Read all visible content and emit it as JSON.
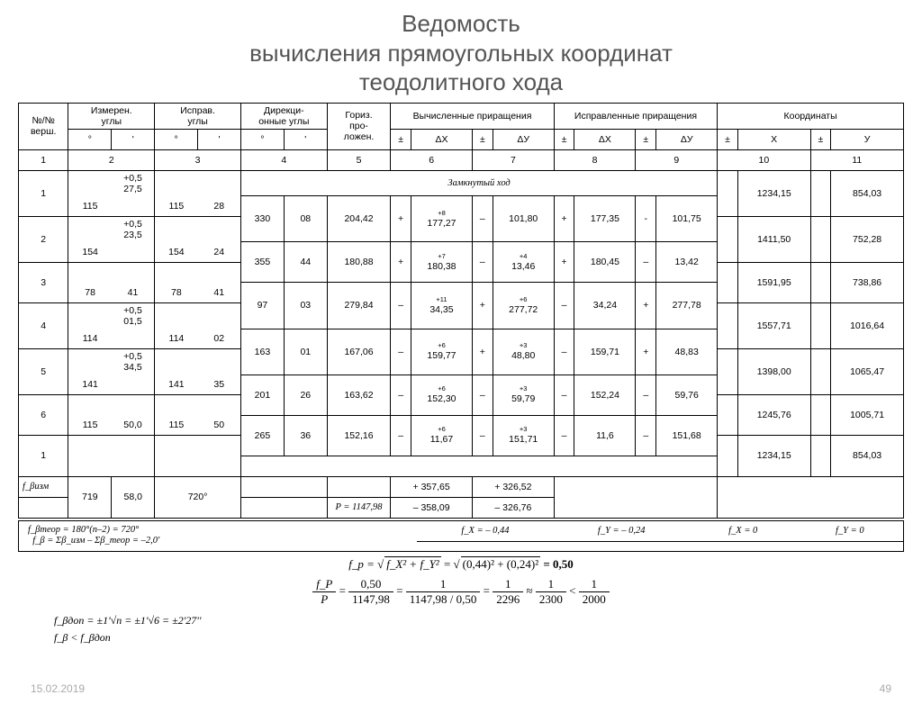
{
  "title_line1": "Ведомость",
  "title_line2": "вычисления прямоугольных координат",
  "title_line3": "теодолитного хода",
  "headers": {
    "c1": "№/№\nверш.",
    "c2": "Измерен.\nуглы",
    "c3": "Исправ.\nуглы",
    "c4": "Дирекци-\nонные углы",
    "c5": "Гориз.\nпро-\nложен.",
    "c6": "Вычисленные\nприращения",
    "c7": "Исправленные\nприращения",
    "c8": "Координаты",
    "pm": "±",
    "dx": "ΔX",
    "dy": "ΔУ",
    "x": "X",
    "y": "У",
    "deg": "°",
    "min": "'"
  },
  "colnums": [
    "1",
    "2",
    "3",
    "4",
    "5",
    "6",
    "7",
    "8",
    "9",
    "10",
    "11"
  ],
  "section_label": "Замкнутый ход",
  "vertices": [
    {
      "n": "1",
      "mc": "+0,5\n27,5",
      "md": "115",
      "id": "115",
      "im": "28",
      "X": "1234,15",
      "Y": "854,03"
    },
    {
      "n": "2",
      "mc": "+0,5\n23,5",
      "md": "154",
      "id": "154",
      "im": "24",
      "X": "1411,50",
      "Y": "752,28"
    },
    {
      "n": "3",
      "mc": "",
      "md": "78",
      "mm": "41",
      "id": "78",
      "im": "41",
      "X": "1591,95",
      "Y": "738,86"
    },
    {
      "n": "4",
      "mc": "+0,5\n01,5",
      "md": "114",
      "id": "114",
      "im": "02",
      "X": "1557,71",
      "Y": "1016,64"
    },
    {
      "n": "5",
      "mc": "+0,5\n34,5",
      "md": "141",
      "id": "141",
      "im": "35",
      "X": "1398,00",
      "Y": "1065,47"
    },
    {
      "n": "6",
      "mc": "",
      "md": "115",
      "mm": "50,0",
      "id": "115",
      "im": "50",
      "X": "1245,76",
      "Y": "1005,71"
    },
    {
      "n": "1",
      "mc": "",
      "md": "",
      "mm": "",
      "id": "",
      "im": "",
      "X": "1234,15",
      "Y": "854,03"
    }
  ],
  "sides": [
    {
      "dd": "330",
      "dm": "08",
      "p": "204,42",
      "sx1": "+",
      "xsup": "+8",
      "x": "177,27",
      "sy1": "–",
      "ysup": "",
      "y": "101,80",
      "sx2": "+",
      "xc": "177,35",
      "sy2": "-",
      "yc": "101,75"
    },
    {
      "dd": "355",
      "dm": "44",
      "p": "180,88",
      "sx1": "+",
      "xsup": "+7",
      "x": "180,38",
      "sy1": "–",
      "ysup": "+4",
      "y": "13,46",
      "sx2": "+",
      "xc": "180,45",
      "sy2": "–",
      "yc": "13,42"
    },
    {
      "dd": "97",
      "dm": "03",
      "p": "279,84",
      "sx1": "–",
      "xsup": "+11",
      "x": "34,35",
      "sy1": "+",
      "ysup": "+6",
      "y": "277,72",
      "sx2": "–",
      "xc": "34,24",
      "sy2": "+",
      "yc": "277,78"
    },
    {
      "dd": "163",
      "dm": "01",
      "p": "167,06",
      "sx1": "–",
      "xsup": "+6",
      "x": "159,77",
      "sy1": "+",
      "ysup": "+3",
      "y": "48,80",
      "sx2": "–",
      "xc": "159,71",
      "sy2": "+",
      "yc": "48,83"
    },
    {
      "dd": "201",
      "dm": "26",
      "p": "163,62",
      "sx1": "–",
      "xsup": "+6",
      "x": "152,30",
      "sy1": "–",
      "ysup": "+3",
      "y": "59,79",
      "sx2": "–",
      "xc": "152,24",
      "sy2": "–",
      "yc": "59,76"
    },
    {
      "dd": "265",
      "dm": "36",
      "p": "152,16",
      "sx1": "–",
      "xsup": "+6",
      "x": "11,67",
      "sy1": "–",
      "ysup": "+3",
      "y": "151,71",
      "sx2": "–",
      "xc": "11,6",
      "sy2": "–",
      "yc": "151,68"
    }
  ],
  "sums": {
    "fbeta_label": "f_βизм",
    "sum_deg": "719",
    "sum_min": "58,0",
    "sum_corr": "720°",
    "p_label": "P = 1147,98",
    "pos_dx": "+ 357,65",
    "pos_dy": "+ 326,52",
    "neg_dx": "– 358,09",
    "neg_dy": "– 326,76"
  },
  "formulas": {
    "fbteor": "f_βтеор = 180°(n–2) = 720°",
    "fb": "f_β = Σβ_изм – Σβ_теор = –2,0'",
    "fx": "f_X = – 0,44",
    "fy": "f_Y = – 0,24",
    "fx0": "f_X = 0",
    "fy0": "f_Y = 0",
    "fp_formula_lhs": "f_p =",
    "fp_under": "f_X² + f_Y²",
    "fp_vals": "(0,44)² + (0,24)²",
    "fp_result": "= 0,50",
    "ratio_p": "P",
    "ratio_fp": "f_P",
    "r1n": "0,50",
    "r1d": "1147,98",
    "r2n": "1",
    "r2d": "1147,98 / 0,50",
    "r3n": "1",
    "r3d": "2296",
    "r4n": "1",
    "r4d": "2300",
    "r5n": "1",
    "r5d": "2000",
    "fbdop": "f_βдоп = ±1'√n = ±1'√6 = ±2'27''",
    "fbcmp": "f_β < f_βдоп"
  },
  "footer": {
    "date": "15.02.2019",
    "page": "49"
  }
}
